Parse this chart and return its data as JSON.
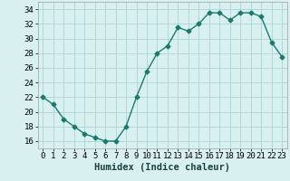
{
  "x": [
    0,
    1,
    2,
    3,
    4,
    5,
    6,
    7,
    8,
    9,
    10,
    11,
    12,
    13,
    14,
    15,
    16,
    17,
    18,
    19,
    20,
    21,
    22,
    23
  ],
  "y": [
    22,
    21,
    19,
    18,
    17,
    16.5,
    16,
    16,
    18,
    22,
    25.5,
    28,
    29,
    31.5,
    31,
    32,
    33.5,
    33.5,
    32.5,
    33.5,
    33.5,
    33,
    29.5,
    27.5
  ],
  "line_color": "#1a7a6e",
  "marker": "D",
  "marker_size": 2.5,
  "bg_color": "#d9f0f0",
  "grid_color": "#b0d8d8",
  "xlabel": "Humidex (Indice chaleur)",
  "xlabel_fontsize": 7.5,
  "ylim": [
    15,
    35
  ],
  "xlim": [
    -0.5,
    23.5
  ],
  "yticks": [
    16,
    18,
    20,
    22,
    24,
    26,
    28,
    30,
    32,
    34
  ],
  "xticks": [
    0,
    1,
    2,
    3,
    4,
    5,
    6,
    7,
    8,
    9,
    10,
    11,
    12,
    13,
    14,
    15,
    16,
    17,
    18,
    19,
    20,
    21,
    22,
    23
  ],
  "tick_label_fontsize": 6.5,
  "line_width": 1.0
}
